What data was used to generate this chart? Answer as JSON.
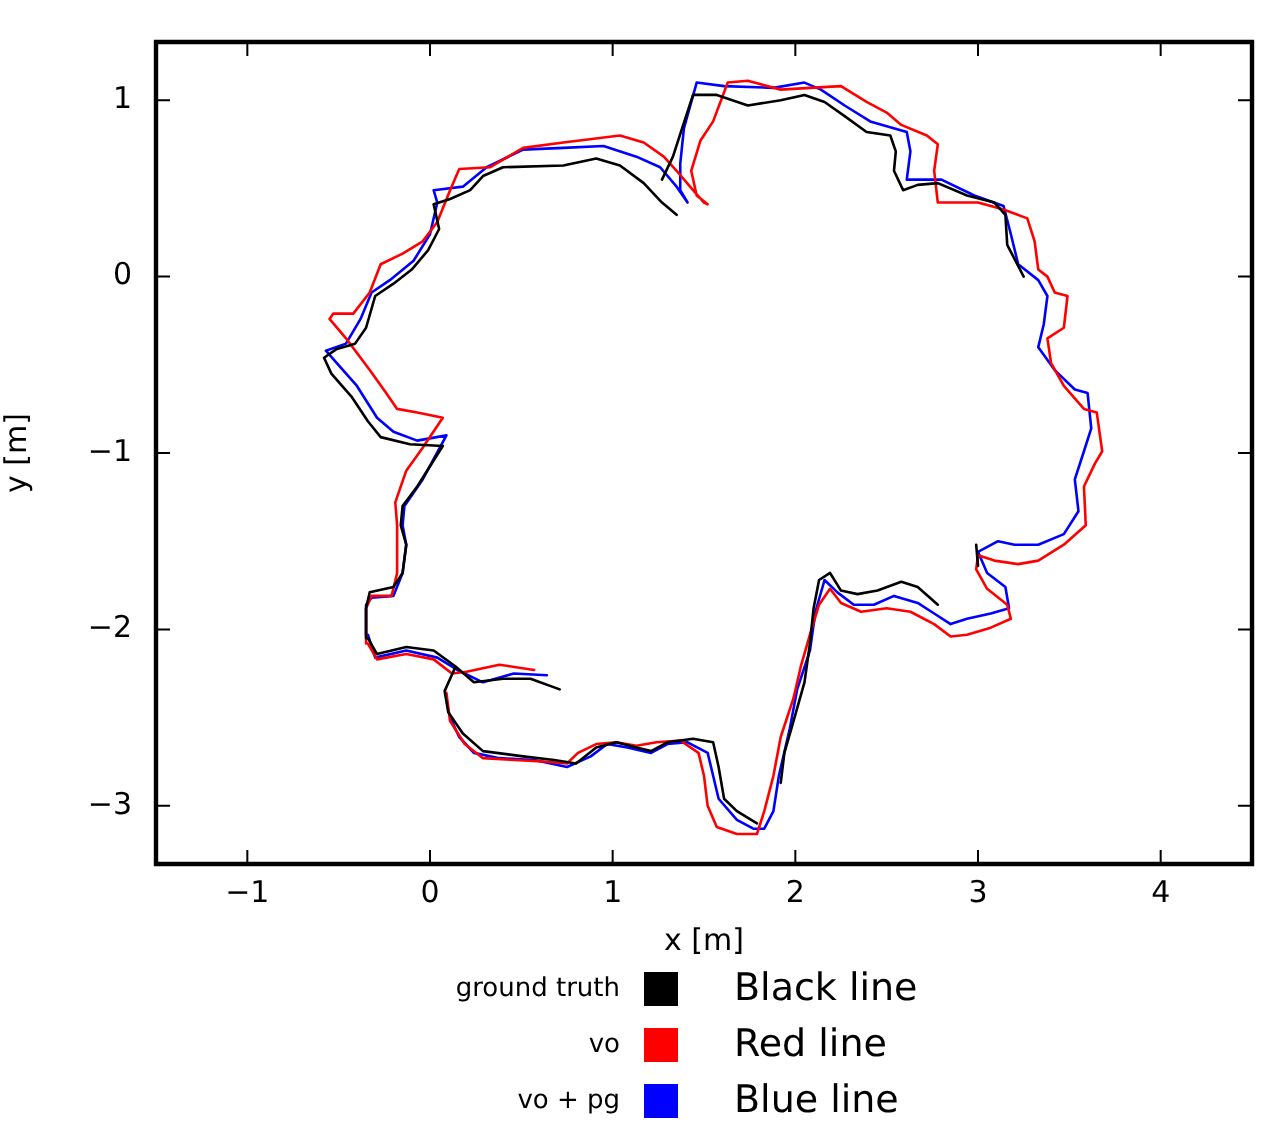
{
  "chart_data": {
    "type": "line",
    "xlabel": "x [m]",
    "ylabel": "y [m]",
    "xlim": [
      -1.5,
      4.5
    ],
    "xticks": [
      -1,
      0,
      1,
      2,
      3,
      4
    ],
    "ylim": [
      -3.33,
      1.33
    ],
    "yticks": [
      -3,
      -2,
      -1,
      0,
      1
    ],
    "grid": false,
    "legend": "bottom",
    "marker": "none",
    "line_style": "solid",
    "annotations": [
      "Black line",
      "Red line",
      "Blue line"
    ],
    "series": [
      {
        "name": "ground truth",
        "color": "#000000",
        "x": [
          1.79,
          1.68,
          1.61,
          1.58,
          1.55,
          1.44,
          1.3,
          1.21,
          1.13,
          1.02,
          0.91,
          0.8,
          0.68,
          0.51,
          0.29,
          0.18,
          0.1,
          0.08,
          0.14,
          0.02,
          -0.13,
          -0.29,
          -0.34,
          -0.35,
          -0.33,
          -0.2,
          -0.15,
          -0.13,
          -0.16,
          -0.15,
          -0.07,
          0.07,
          -0.11,
          -0.27,
          -0.34,
          -0.43,
          -0.54,
          -0.58,
          -0.51,
          -0.41,
          -0.35,
          -0.3,
          -0.2,
          -0.1,
          -0.01,
          0.05,
          0.02,
          0.11,
          0.22,
          0.29,
          0.4,
          0.73,
          0.91,
          1.04,
          1.17,
          1.27,
          1.35,
          null,
          0.71,
          0.55,
          0.4,
          0.24,
          0.14,
          null,
          1.27,
          1.33,
          1.38,
          1.44,
          1.57,
          1.74,
          1.92,
          2.05,
          2.16,
          2.27,
          2.39,
          2.52,
          2.55,
          2.54,
          2.59,
          2.67,
          2.78,
          2.94,
          3.09,
          3.15,
          3.16,
          3.25,
          null,
          2.99,
          3.0,
          null,
          2.78,
          2.67,
          2.58,
          2.45,
          2.34,
          2.25,
          2.19,
          2.13,
          2.1,
          2.08,
          2.05,
          1.99,
          1.94,
          1.92
        ],
        "values": [
          -3.1,
          -3.03,
          -2.96,
          -2.78,
          -2.64,
          -2.62,
          -2.64,
          -2.69,
          -2.67,
          -2.64,
          -2.67,
          -2.76,
          -2.74,
          -2.72,
          -2.69,
          -2.59,
          -2.47,
          -2.35,
          -2.21,
          -2.12,
          -2.1,
          -2.14,
          -2.05,
          -1.88,
          -1.79,
          -1.76,
          -1.68,
          -1.52,
          -1.41,
          -1.3,
          -1.19,
          -0.96,
          -0.95,
          -0.91,
          -0.82,
          -0.68,
          -0.55,
          -0.46,
          -0.41,
          -0.38,
          -0.29,
          -0.11,
          -0.04,
          0.04,
          0.15,
          0.27,
          0.41,
          0.44,
          0.49,
          0.57,
          0.62,
          0.63,
          0.67,
          0.63,
          0.53,
          0.42,
          0.35,
          null,
          -2.34,
          -2.28,
          -2.28,
          -2.3,
          -2.21,
          null,
          0.55,
          0.68,
          0.84,
          1.03,
          1.03,
          0.97,
          1.0,
          1.03,
          0.99,
          0.91,
          0.82,
          0.8,
          0.71,
          0.6,
          0.49,
          0.52,
          0.53,
          0.46,
          0.42,
          0.35,
          0.18,
          0.0,
          null,
          -1.52,
          -1.64,
          null,
          -1.86,
          -1.76,
          -1.73,
          -1.78,
          -1.8,
          -1.78,
          -1.68,
          -1.72,
          -1.88,
          -2.08,
          -2.3,
          -2.52,
          -2.7,
          -2.87
        ]
      },
      {
        "name": "vo",
        "color": "#ff0000",
        "x": [
          0.57,
          0.38,
          0.2,
          0.12,
          0.02,
          -0.13,
          -0.29,
          -0.34,
          -0.35,
          -0.32,
          -0.21,
          -0.18,
          -0.18,
          -0.19,
          -0.13,
          -0.04,
          0.07,
          -0.07,
          -0.18,
          -0.24,
          -0.33,
          -0.46,
          -0.55,
          -0.53,
          -0.42,
          -0.33,
          -0.27,
          -0.15,
          -0.04,
          0.04,
          0.11,
          0.16,
          0.33,
          0.51,
          0.73,
          1.04,
          1.17,
          1.28,
          1.35,
          1.44,
          1.5,
          1.52,
          1.46,
          1.43,
          1.48,
          1.55,
          1.63,
          1.74,
          1.92,
          2.08,
          2.25,
          2.39,
          2.5,
          2.58,
          2.72,
          2.78,
          2.76,
          2.78,
          2.89,
          3.0,
          3.14,
          3.27,
          3.31,
          3.33,
          3.38,
          3.42,
          3.49,
          3.47,
          3.38,
          3.4,
          3.47,
          3.58,
          3.65,
          3.68,
          3.64,
          3.58,
          3.59,
          3.47,
          3.33,
          3.22,
          3.09,
          3.0,
          2.99,
          3.05,
          3.16,
          3.18,
          3.07,
          2.94,
          2.85,
          2.76,
          2.63,
          2.5,
          2.36,
          2.25,
          2.19,
          2.13,
          2.08,
          2.03,
          1.99,
          1.92,
          1.88,
          1.83,
          1.79,
          1.68,
          1.57,
          1.52,
          1.5,
          1.47,
          1.37,
          1.24,
          1.13,
          1.02,
          0.91,
          0.81,
          0.75,
          0.64,
          0.46,
          0.29,
          0.19,
          0.11,
          0.09
        ],
        "values": [
          -2.23,
          -2.2,
          -2.24,
          -2.25,
          -2.17,
          -2.14,
          -2.17,
          -2.08,
          -1.88,
          -1.81,
          -1.81,
          -1.68,
          -1.41,
          -1.28,
          -1.1,
          -0.97,
          -0.8,
          -0.77,
          -0.75,
          -0.66,
          -0.53,
          -0.35,
          -0.24,
          -0.21,
          -0.21,
          -0.09,
          0.07,
          0.13,
          0.2,
          0.31,
          0.49,
          0.61,
          0.62,
          0.73,
          0.76,
          0.8,
          0.76,
          0.68,
          0.6,
          0.49,
          0.42,
          0.41,
          0.46,
          0.6,
          0.77,
          0.88,
          1.1,
          1.11,
          1.06,
          1.07,
          1.08,
          0.99,
          0.93,
          0.86,
          0.8,
          0.75,
          0.6,
          0.42,
          0.42,
          0.42,
          0.38,
          0.33,
          0.2,
          0.04,
          0.0,
          -0.09,
          -0.11,
          -0.29,
          -0.35,
          -0.49,
          -0.62,
          -0.75,
          -0.77,
          -0.99,
          -1.06,
          -1.19,
          -1.41,
          -1.52,
          -1.61,
          -1.63,
          -1.61,
          -1.58,
          -1.66,
          -1.77,
          -1.86,
          -1.94,
          -1.99,
          -2.03,
          -2.04,
          -1.97,
          -1.9,
          -1.88,
          -1.9,
          -1.85,
          -1.77,
          -1.86,
          -2.03,
          -2.21,
          -2.39,
          -2.61,
          -2.83,
          -3.03,
          -3.16,
          -3.16,
          -3.12,
          -3.0,
          -2.83,
          -2.7,
          -2.63,
          -2.64,
          -2.66,
          -2.64,
          -2.65,
          -2.7,
          -2.76,
          -2.75,
          -2.74,
          -2.73,
          -2.65,
          -2.52,
          -2.36
        ]
      },
      {
        "name": "vo + pg",
        "color": "#0000ff",
        "x": [
          0.64,
          0.46,
          0.29,
          0.15,
          0.04,
          -0.13,
          -0.3,
          -0.34,
          -0.35,
          -0.32,
          -0.2,
          -0.15,
          -0.13,
          -0.15,
          -0.14,
          -0.04,
          0.09,
          -0.07,
          -0.2,
          -0.29,
          -0.4,
          -0.51,
          -0.57,
          -0.46,
          -0.38,
          -0.32,
          -0.22,
          -0.09,
          0.0,
          0.04,
          0.02,
          0.18,
          0.31,
          0.51,
          0.73,
          0.95,
          1.13,
          1.26,
          1.35,
          1.41,
          1.37,
          1.37,
          1.39,
          1.46,
          1.61,
          1.88,
          2.05,
          2.14,
          2.27,
          2.41,
          2.61,
          2.63,
          2.61,
          2.69,
          2.8,
          2.98,
          3.14,
          3.18,
          3.22,
          3.33,
          3.38,
          3.36,
          3.33,
          3.42,
          3.53,
          3.6,
          3.62,
          3.58,
          3.53,
          3.55,
          3.47,
          3.33,
          3.2,
          3.11,
          3.0,
          3.05,
          3.15,
          3.17,
          3.07,
          2.94,
          2.85,
          2.76,
          2.67,
          2.54,
          2.43,
          2.32,
          2.23,
          2.16,
          2.11,
          2.08,
          2.01,
          1.97,
          1.91,
          1.88,
          1.83,
          1.77,
          1.68,
          1.58,
          1.55,
          1.52,
          1.41,
          1.3,
          1.21,
          1.08,
          0.97,
          0.88,
          0.75,
          0.57,
          0.38,
          0.24,
          0.16,
          0.11
        ],
        "values": [
          -2.26,
          -2.25,
          -2.3,
          -2.23,
          -2.16,
          -2.12,
          -2.16,
          -2.03,
          -1.86,
          -1.82,
          -1.81,
          -1.68,
          -1.52,
          -1.41,
          -1.3,
          -1.15,
          -0.9,
          -0.93,
          -0.88,
          -0.8,
          -0.62,
          -0.49,
          -0.42,
          -0.38,
          -0.24,
          -0.09,
          -0.02,
          0.09,
          0.24,
          0.42,
          0.49,
          0.51,
          0.62,
          0.72,
          0.73,
          0.74,
          0.68,
          0.62,
          0.51,
          0.42,
          0.49,
          0.64,
          0.84,
          1.1,
          1.08,
          1.07,
          1.1,
          1.06,
          0.97,
          0.88,
          0.82,
          0.71,
          0.55,
          0.55,
          0.55,
          0.46,
          0.4,
          0.24,
          0.07,
          -0.02,
          -0.11,
          -0.27,
          -0.4,
          -0.53,
          -0.64,
          -0.66,
          -0.86,
          -0.99,
          -1.15,
          -1.33,
          -1.46,
          -1.52,
          -1.52,
          -1.5,
          -1.56,
          -1.68,
          -1.76,
          -1.88,
          -1.91,
          -1.94,
          -1.97,
          -1.91,
          -1.85,
          -1.81,
          -1.86,
          -1.86,
          -1.79,
          -1.72,
          -1.9,
          -2.12,
          -2.34,
          -2.56,
          -2.83,
          -3.03,
          -3.13,
          -3.13,
          -3.08,
          -2.96,
          -2.83,
          -2.7,
          -2.64,
          -2.65,
          -2.7,
          -2.67,
          -2.65,
          -2.72,
          -2.78,
          -2.74,
          -2.73,
          -2.7,
          -2.61,
          -2.5
        ]
      }
    ]
  }
}
